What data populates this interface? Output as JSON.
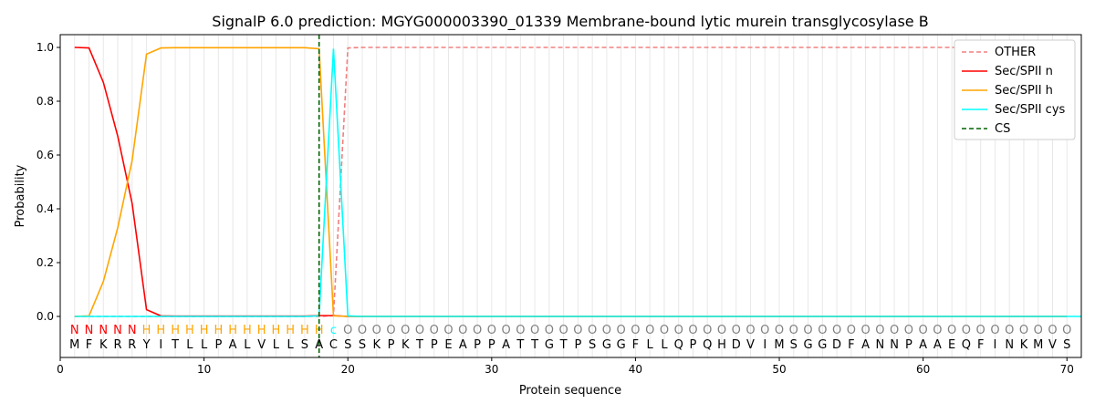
{
  "chart_data": {
    "type": "line",
    "title": "SignalP 6.0 prediction: MGYG000003390_01339 Membrane-bound lytic murein transglycosylase B",
    "xlabel": "Protein sequence",
    "ylabel": "Probability",
    "xlim": [
      0,
      71
    ],
    "ylim": [
      -0.15,
      1.05
    ],
    "xticks": [
      0,
      10,
      20,
      30,
      40,
      50,
      60,
      70
    ],
    "yticks": [
      "0.0",
      "0.2",
      "0.4",
      "0.6",
      "0.8",
      "1.0"
    ],
    "legend_position": "top-right",
    "sequence": "MFKRRYITLLPALVLLSACSSKPKTPEAPPATTGTPSGGFLLQPQHDVIMSGGDFANNPAAEQFINKMVS",
    "labels": "NNNNNHHHHHHHHHHHHHcOOOOOOOOOOOOOOOOOOOOOOOOOOOOOOOOOOOOOOOOOOOOOOOOOOO",
    "label_colors": {
      "N": "#ff0000",
      "H": "#ffa500",
      "c": "#00ffff",
      "O": "#808080"
    },
    "cs_position": 18,
    "series": [
      {
        "name": "OTHER",
        "color": "#f08080",
        "dash": true,
        "values": [
          0,
          0,
          0,
          0,
          0,
          0,
          0,
          0,
          0,
          0,
          0,
          0,
          0,
          0,
          0,
          0,
          0,
          0,
          0.003,
          0.998,
          1,
          1,
          1,
          1,
          1,
          1,
          1,
          1,
          1,
          1,
          1,
          1,
          1,
          1,
          1,
          1,
          1,
          1,
          1,
          1,
          1,
          1,
          1,
          1,
          1,
          1,
          1,
          1,
          1,
          1,
          1,
          1,
          1,
          1,
          1,
          1,
          1,
          1,
          1,
          1,
          1,
          1,
          1,
          1,
          1,
          1,
          1,
          1,
          1,
          1
        ]
      },
      {
        "name": "Sec/SPII n",
        "color": "#ff0000",
        "values": [
          1.0,
          0.998,
          0.87,
          0.67,
          0.42,
          0.025,
          0.002,
          0.001,
          0.001,
          0.001,
          0.001,
          0.001,
          0.001,
          0.001,
          0.001,
          0.001,
          0.001,
          0.003,
          0.003,
          0,
          0,
          0,
          0,
          0,
          0,
          0,
          0,
          0,
          0,
          0,
          0,
          0,
          0,
          0,
          0,
          0,
          0,
          0,
          0,
          0,
          0,
          0,
          0,
          0,
          0,
          0,
          0,
          0,
          0,
          0,
          0,
          0,
          0,
          0,
          0,
          0,
          0,
          0,
          0,
          0,
          0,
          0,
          0,
          0,
          0,
          0,
          0,
          0,
          0,
          0
        ]
      },
      {
        "name": "Sec/SPII h",
        "color": "#ffa500",
        "values": [
          0,
          0.002,
          0.13,
          0.33,
          0.58,
          0.975,
          0.998,
          0.999,
          0.999,
          0.999,
          0.999,
          0.999,
          0.999,
          0.999,
          0.999,
          0.999,
          0.999,
          0.995,
          0.002,
          0,
          0,
          0,
          0,
          0,
          0,
          0,
          0,
          0,
          0,
          0,
          0,
          0,
          0,
          0,
          0,
          0,
          0,
          0,
          0,
          0,
          0,
          0,
          0,
          0,
          0,
          0,
          0,
          0,
          0,
          0,
          0,
          0,
          0,
          0,
          0,
          0,
          0,
          0,
          0,
          0,
          0,
          0,
          0,
          0,
          0,
          0,
          0,
          0,
          0,
          0
        ]
      },
      {
        "name": "Sec/SPII cys",
        "color": "#00ffff",
        "values": [
          0,
          0,
          0,
          0,
          0,
          0,
          0,
          0,
          0,
          0,
          0,
          0,
          0,
          0,
          0,
          0,
          0,
          0.002,
          0.995,
          0.002,
          0,
          0,
          0,
          0,
          0,
          0,
          0,
          0,
          0,
          0,
          0,
          0,
          0,
          0,
          0,
          0,
          0,
          0,
          0,
          0,
          0,
          0,
          0,
          0,
          0,
          0,
          0,
          0,
          0,
          0,
          0,
          0,
          0,
          0,
          0,
          0,
          0,
          0,
          0,
          0,
          0,
          0,
          0,
          0,
          0,
          0,
          0,
          0,
          0,
          0,
          0
        ]
      }
    ],
    "cs_label": "CS",
    "cs_color": "#006400"
  }
}
